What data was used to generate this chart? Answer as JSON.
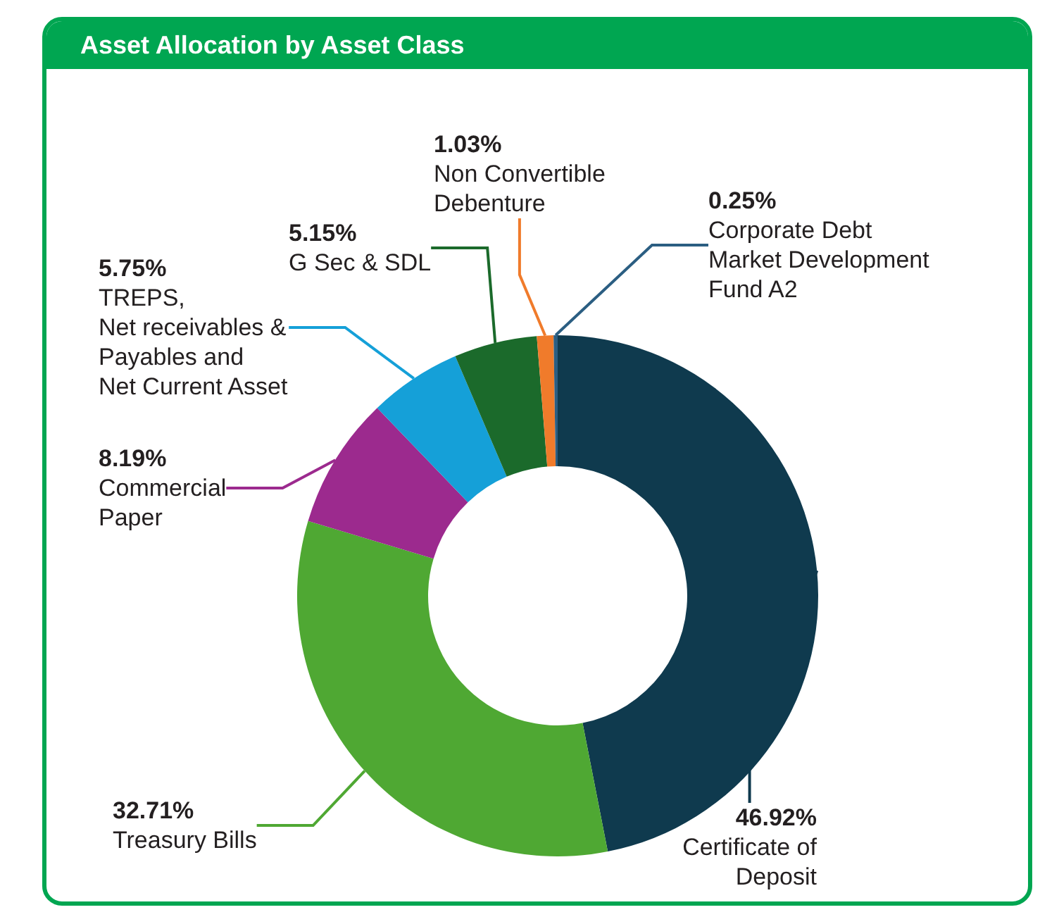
{
  "chart_data": {
    "type": "donut",
    "title": "Asset Allocation by Asset Class",
    "categories": [
      "Certificate of\nDeposit",
      "Treasury Bills",
      "Commercial\nPaper",
      "TREPS,\nNet receivables &\nPayables and\nNet Current Asset",
      "G Sec & SDL",
      "Non Convertible\nDebenture",
      "Corporate Debt\nMarket Development\nFund A2"
    ],
    "values": [
      46.92,
      32.71,
      8.19,
      5.75,
      5.15,
      1.03,
      0.25
    ],
    "colors": [
      "#0f3a4e",
      "#4fa833",
      "#9c2a8e",
      "#15a0d8",
      "#1b6a2b",
      "#f07b2b",
      "#2b5e82"
    ],
    "value_labels": [
      "46.92%",
      "32.71%",
      "8.19%",
      "5.75%",
      "5.15%",
      "1.03%",
      "0.25%"
    ],
    "legend": false
  }
}
